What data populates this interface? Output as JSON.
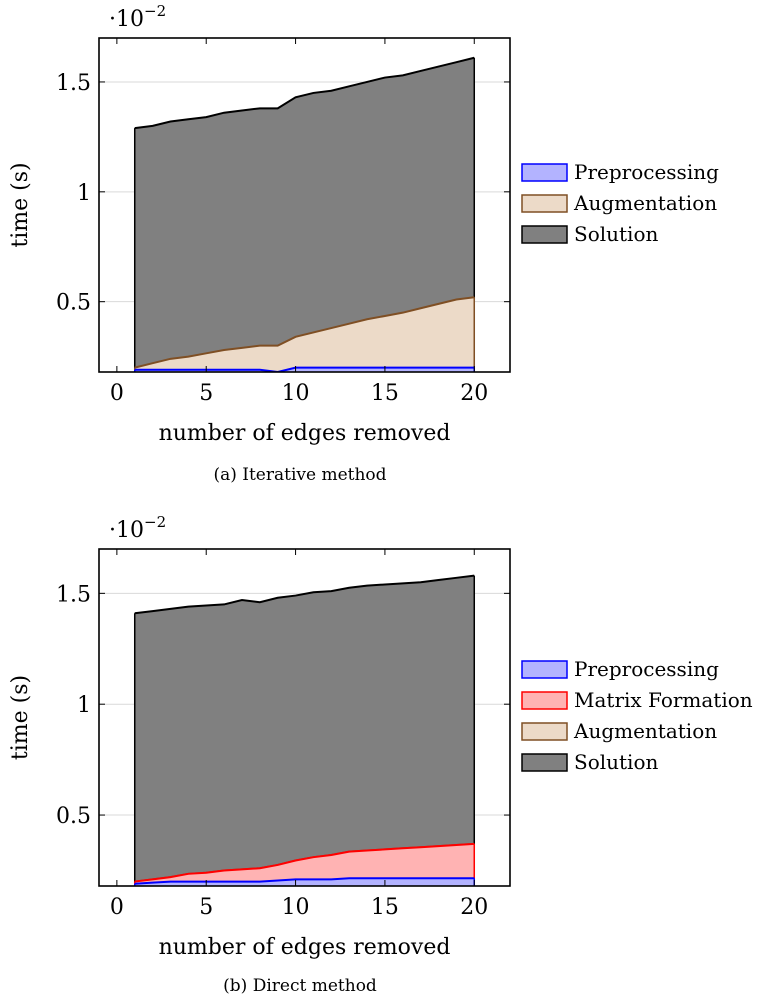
{
  "chart_data": [
    {
      "type": "area",
      "stacked": false,
      "caption": "(a) Iterative method",
      "xlabel": "number of edges removed",
      "ylabel": "time (s)",
      "y_scale_multiplier": "·10",
      "y_scale_exponent": "−2",
      "xlim": [
        -1,
        22
      ],
      "ylim": [
        0.18,
        1.7
      ],
      "x_ticks": [
        0,
        5,
        10,
        15,
        20
      ],
      "x_tick_labels": [
        "0",
        "5",
        "10",
        "15",
        "20"
      ],
      "y_ticks": [
        0.5,
        1,
        1.5
      ],
      "y_tick_labels": [
        "0.5",
        "1",
        "1.5"
      ],
      "grid": "horizontal",
      "legend_position": "outside-right",
      "x": [
        1,
        2,
        3,
        4,
        5,
        6,
        7,
        8,
        9,
        10,
        11,
        12,
        13,
        14,
        15,
        16,
        17,
        18,
        19,
        20
      ],
      "series": [
        {
          "name": "Preprocessing",
          "color": "#0000ff",
          "fill": "#b3b3ff",
          "values": [
            0.19,
            0.19,
            0.19,
            0.19,
            0.19,
            0.19,
            0.19,
            0.19,
            0.18,
            0.2,
            0.2,
            0.2,
            0.2,
            0.2,
            0.2,
            0.2,
            0.2,
            0.2,
            0.2,
            0.2
          ]
        },
        {
          "name": "Augmentation",
          "color": "#7f4f24",
          "fill": "#ecdac8",
          "values": [
            0.2,
            0.22,
            0.24,
            0.25,
            0.265,
            0.28,
            0.29,
            0.3,
            0.3,
            0.34,
            0.36,
            0.38,
            0.4,
            0.42,
            0.435,
            0.45,
            0.47,
            0.49,
            0.51,
            0.52
          ]
        },
        {
          "name": "Solution",
          "color": "#000000",
          "fill": "#808080",
          "values": [
            1.29,
            1.3,
            1.32,
            1.33,
            1.34,
            1.36,
            1.37,
            1.38,
            1.38,
            1.43,
            1.45,
            1.46,
            1.48,
            1.5,
            1.52,
            1.53,
            1.55,
            1.57,
            1.59,
            1.61
          ]
        }
      ]
    },
    {
      "type": "area",
      "stacked": false,
      "caption": "(b) Direct method",
      "xlabel": "number of edges removed",
      "ylabel": "time (s)",
      "y_scale_multiplier": "·10",
      "y_scale_exponent": "−2",
      "xlim": [
        -1,
        22
      ],
      "ylim": [
        0.18,
        1.7
      ],
      "x_ticks": [
        0,
        5,
        10,
        15,
        20
      ],
      "x_tick_labels": [
        "0",
        "5",
        "10",
        "15",
        "20"
      ],
      "y_ticks": [
        0.5,
        1,
        1.5
      ],
      "y_tick_labels": [
        "0.5",
        "1",
        "1.5"
      ],
      "grid": "horizontal",
      "legend_position": "outside-right",
      "x": [
        1,
        2,
        3,
        4,
        5,
        6,
        7,
        8,
        9,
        10,
        11,
        12,
        13,
        14,
        15,
        16,
        17,
        18,
        19,
        20
      ],
      "series": [
        {
          "name": "Preprocessing",
          "color": "#0000ff",
          "fill": "#b3b3ff",
          "values": [
            0.19,
            0.195,
            0.2,
            0.2,
            0.2,
            0.2,
            0.2,
            0.2,
            0.205,
            0.21,
            0.21,
            0.21,
            0.215,
            0.215,
            0.215,
            0.215,
            0.215,
            0.215,
            0.215,
            0.215
          ]
        },
        {
          "name": "Matrix Formation",
          "color": "#ff0000",
          "fill": "#ffb3b3",
          "values": [
            0.2,
            0.21,
            0.22,
            0.235,
            0.24,
            0.25,
            0.255,
            0.26,
            0.275,
            0.295,
            0.31,
            0.32,
            0.335,
            0.34,
            0.345,
            0.35,
            0.355,
            0.36,
            0.365,
            0.37
          ]
        },
        {
          "name": "Augmentation",
          "color": "#7f4f24",
          "fill": "#ecdac8",
          "values": [
            0.2,
            0.21,
            0.22,
            0.235,
            0.24,
            0.25,
            0.255,
            0.26,
            0.275,
            0.295,
            0.31,
            0.32,
            0.335,
            0.34,
            0.345,
            0.35,
            0.355,
            0.36,
            0.365,
            0.37
          ]
        },
        {
          "name": "Solution",
          "color": "#000000",
          "fill": "#808080",
          "values": [
            1.41,
            1.42,
            1.43,
            1.44,
            1.445,
            1.45,
            1.47,
            1.46,
            1.48,
            1.49,
            1.505,
            1.51,
            1.525,
            1.535,
            1.54,
            1.545,
            1.55,
            1.56,
            1.57,
            1.58
          ]
        }
      ]
    }
  ]
}
